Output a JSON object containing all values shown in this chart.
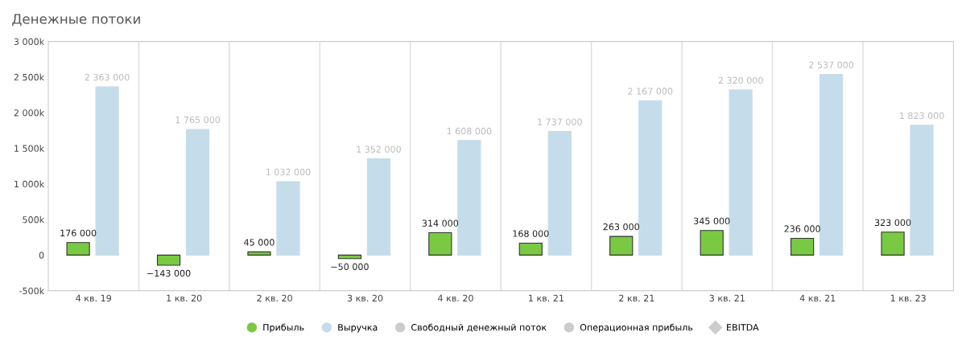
{
  "chart_data": {
    "type": "bar",
    "title": "Денежные потоки",
    "categories": [
      "4 кв. 19",
      "1 кв. 20",
      "2 кв. 20",
      "3 кв. 20",
      "4 кв. 20",
      "1 кв. 21",
      "2 кв. 21",
      "3 кв. 21",
      "4 кв. 21",
      "1 кв. 23"
    ],
    "series": [
      {
        "name": "Прибыль",
        "color": "#7ac943",
        "values": [
          176000,
          -143000,
          45000,
          -50000,
          314000,
          168000,
          263000,
          345000,
          236000,
          323000
        ],
        "value_labels": [
          "176 000",
          "−143 000",
          "45 000",
          "−50 000",
          "314 000",
          "168 000",
          "263 000",
          "345 000",
          "236 000",
          "323 000"
        ]
      },
      {
        "name": "Выручка",
        "color": "#c5dcea",
        "values": [
          2363000,
          1765000,
          1032000,
          1352000,
          1608000,
          1737000,
          2167000,
          2320000,
          2537000,
          1823000
        ],
        "value_labels": [
          "2 363 000",
          "1 765 000",
          "1 032 000",
          "1 352 000",
          "1 608 000",
          "1 737 000",
          "2 167 000",
          "2 320 000",
          "2 537 000",
          "1 823 000"
        ]
      },
      {
        "name": "Свободный денежный поток",
        "color": "#cccccc",
        "values": [
          null,
          null,
          null,
          null,
          null,
          null,
          null,
          null,
          null,
          null
        ]
      },
      {
        "name": "Операционная прибыль",
        "color": "#cccccc",
        "values": [
          null,
          null,
          null,
          null,
          null,
          null,
          null,
          null,
          null,
          null
        ]
      },
      {
        "name": "EBITDA",
        "color": "#cccccc",
        "type": "line",
        "marker": "diamond",
        "values": [
          null,
          null,
          null,
          null,
          null,
          null,
          null,
          null,
          null,
          null
        ]
      }
    ],
    "ylim": [
      -500000,
      3000000
    ],
    "yticks": [
      {
        "value": -500000,
        "label": "-500k"
      },
      0,
      {
        "value": 500000,
        "label": "500k"
      },
      {
        "value": 1000000,
        "label": "1 000k"
      },
      {
        "value": 1500000,
        "label": "1 500k"
      },
      {
        "value": 2000000,
        "label": "2 000k"
      },
      {
        "value": 2500000,
        "label": "2 500k"
      },
      {
        "value": 3000000,
        "label": "3 000k"
      }
    ],
    "grid": "x",
    "legend": "bottom"
  }
}
